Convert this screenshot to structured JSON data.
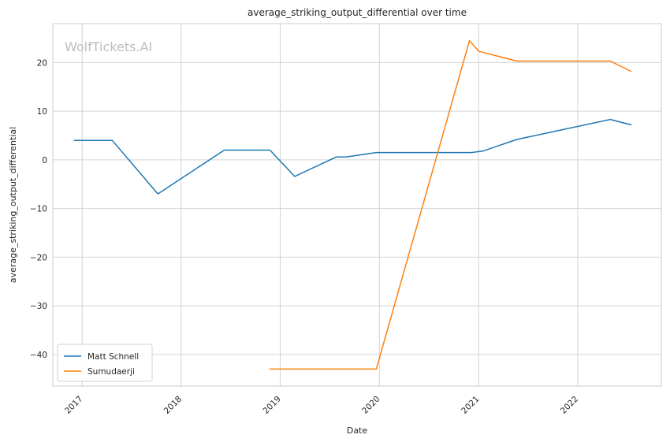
{
  "chart_data": {
    "type": "line",
    "title": "average_striking_output_differential over time",
    "xlabel": "Date",
    "ylabel": "average_striking_output_differential",
    "watermark": "WolfTickets.AI",
    "x_axis": "date",
    "xlim": [
      "2016-09-15",
      "2022-11-05"
    ],
    "ylim": [
      -46.5,
      28.0
    ],
    "x_ticks": [
      "2017",
      "2018",
      "2019",
      "2020",
      "2021",
      "2022"
    ],
    "y_ticks": [
      -40,
      -30,
      -20,
      -10,
      0,
      10,
      20
    ],
    "y_tick_labels": [
      "−40",
      "−30",
      "−20",
      "−10",
      "0",
      "10",
      "20"
    ],
    "grid": true,
    "legend_position": "lower-left",
    "series": [
      {
        "name": "Matt Schnell",
        "color": "#1f77b4",
        "x": [
          "2016-12-03",
          "2017-04-22",
          "2017-10-07",
          "2018-06-09",
          "2018-11-24",
          "2019-02-23",
          "2019-07-27",
          "2019-08-31",
          "2019-12-21",
          "2020-12-05",
          "2021-01-16",
          "2021-05-22",
          "2022-05-01",
          "2022-07-16"
        ],
        "y": [
          4.0,
          4.0,
          -7.0,
          2.0,
          2.0,
          -3.4,
          0.6,
          0.6,
          1.5,
          1.5,
          1.8,
          4.2,
          8.3,
          7.2
        ]
      },
      {
        "name": "Sumudaerji",
        "color": "#ff7f0e",
        "x": [
          "2018-11-24",
          "2019-12-21",
          "2020-11-28",
          "2021-01-02",
          "2021-05-22",
          "2022-05-01",
          "2022-07-16"
        ],
        "y": [
          -43.0,
          -43.0,
          24.5,
          22.3,
          20.3,
          20.3,
          18.2
        ]
      }
    ]
  }
}
